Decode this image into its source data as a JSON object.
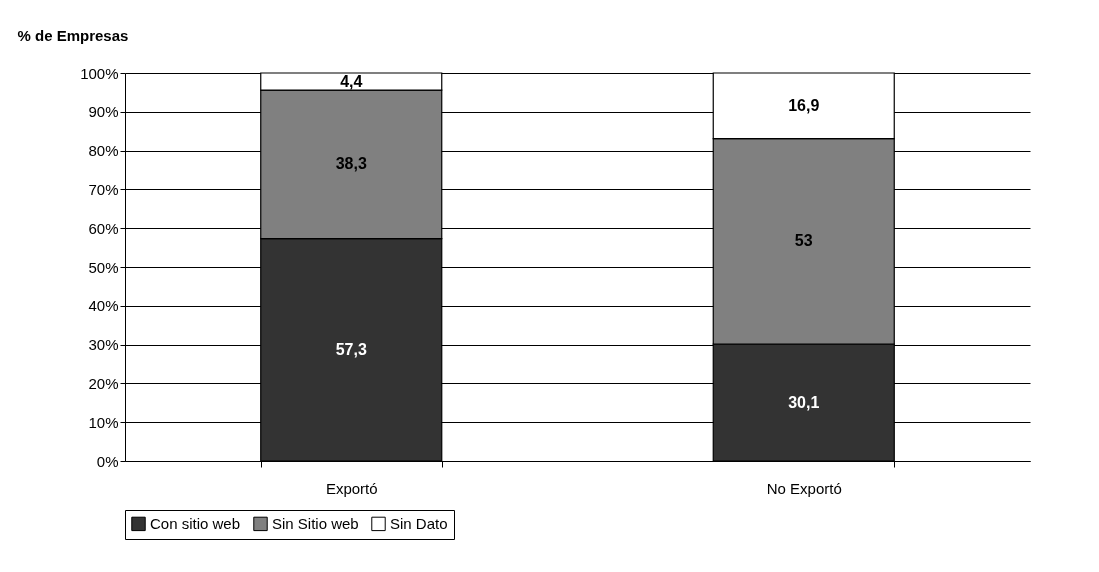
{
  "chart_data": {
    "type": "bar",
    "stacked": true,
    "ylabel": "% de Empresas",
    "categories": [
      "Exportó",
      "No Exportó"
    ],
    "series": [
      {
        "name": "Con sitio web",
        "color": "#333333",
        "values": [
          57.3,
          30.1
        ],
        "value_labels": [
          "57,3",
          "30,1"
        ]
      },
      {
        "name": "Sin Sitio web",
        "color": "#808080",
        "values": [
          38.3,
          53
        ],
        "value_labels": [
          "38,3",
          "53"
        ]
      },
      {
        "name": "Sin Dato",
        "color": "#ffffff",
        "values": [
          4.4,
          16.9
        ],
        "value_labels": [
          "4,4",
          "16,9"
        ]
      }
    ],
    "ylim": [
      0,
      100
    ],
    "yticks": [
      {
        "value": 0,
        "label": "0%"
      },
      {
        "value": 10,
        "label": "10%"
      },
      {
        "value": 20,
        "label": "20%"
      },
      {
        "value": 30,
        "label": "30%"
      },
      {
        "value": 40,
        "label": "40%"
      },
      {
        "value": 50,
        "label": "50%"
      },
      {
        "value": 60,
        "label": "60%"
      },
      {
        "value": 70,
        "label": "70%"
      },
      {
        "value": 80,
        "label": "80%"
      },
      {
        "value": 90,
        "label": "90%"
      },
      {
        "value": 100,
        "label": "100%"
      }
    ],
    "grid": "y",
    "legend": "bottom"
  }
}
